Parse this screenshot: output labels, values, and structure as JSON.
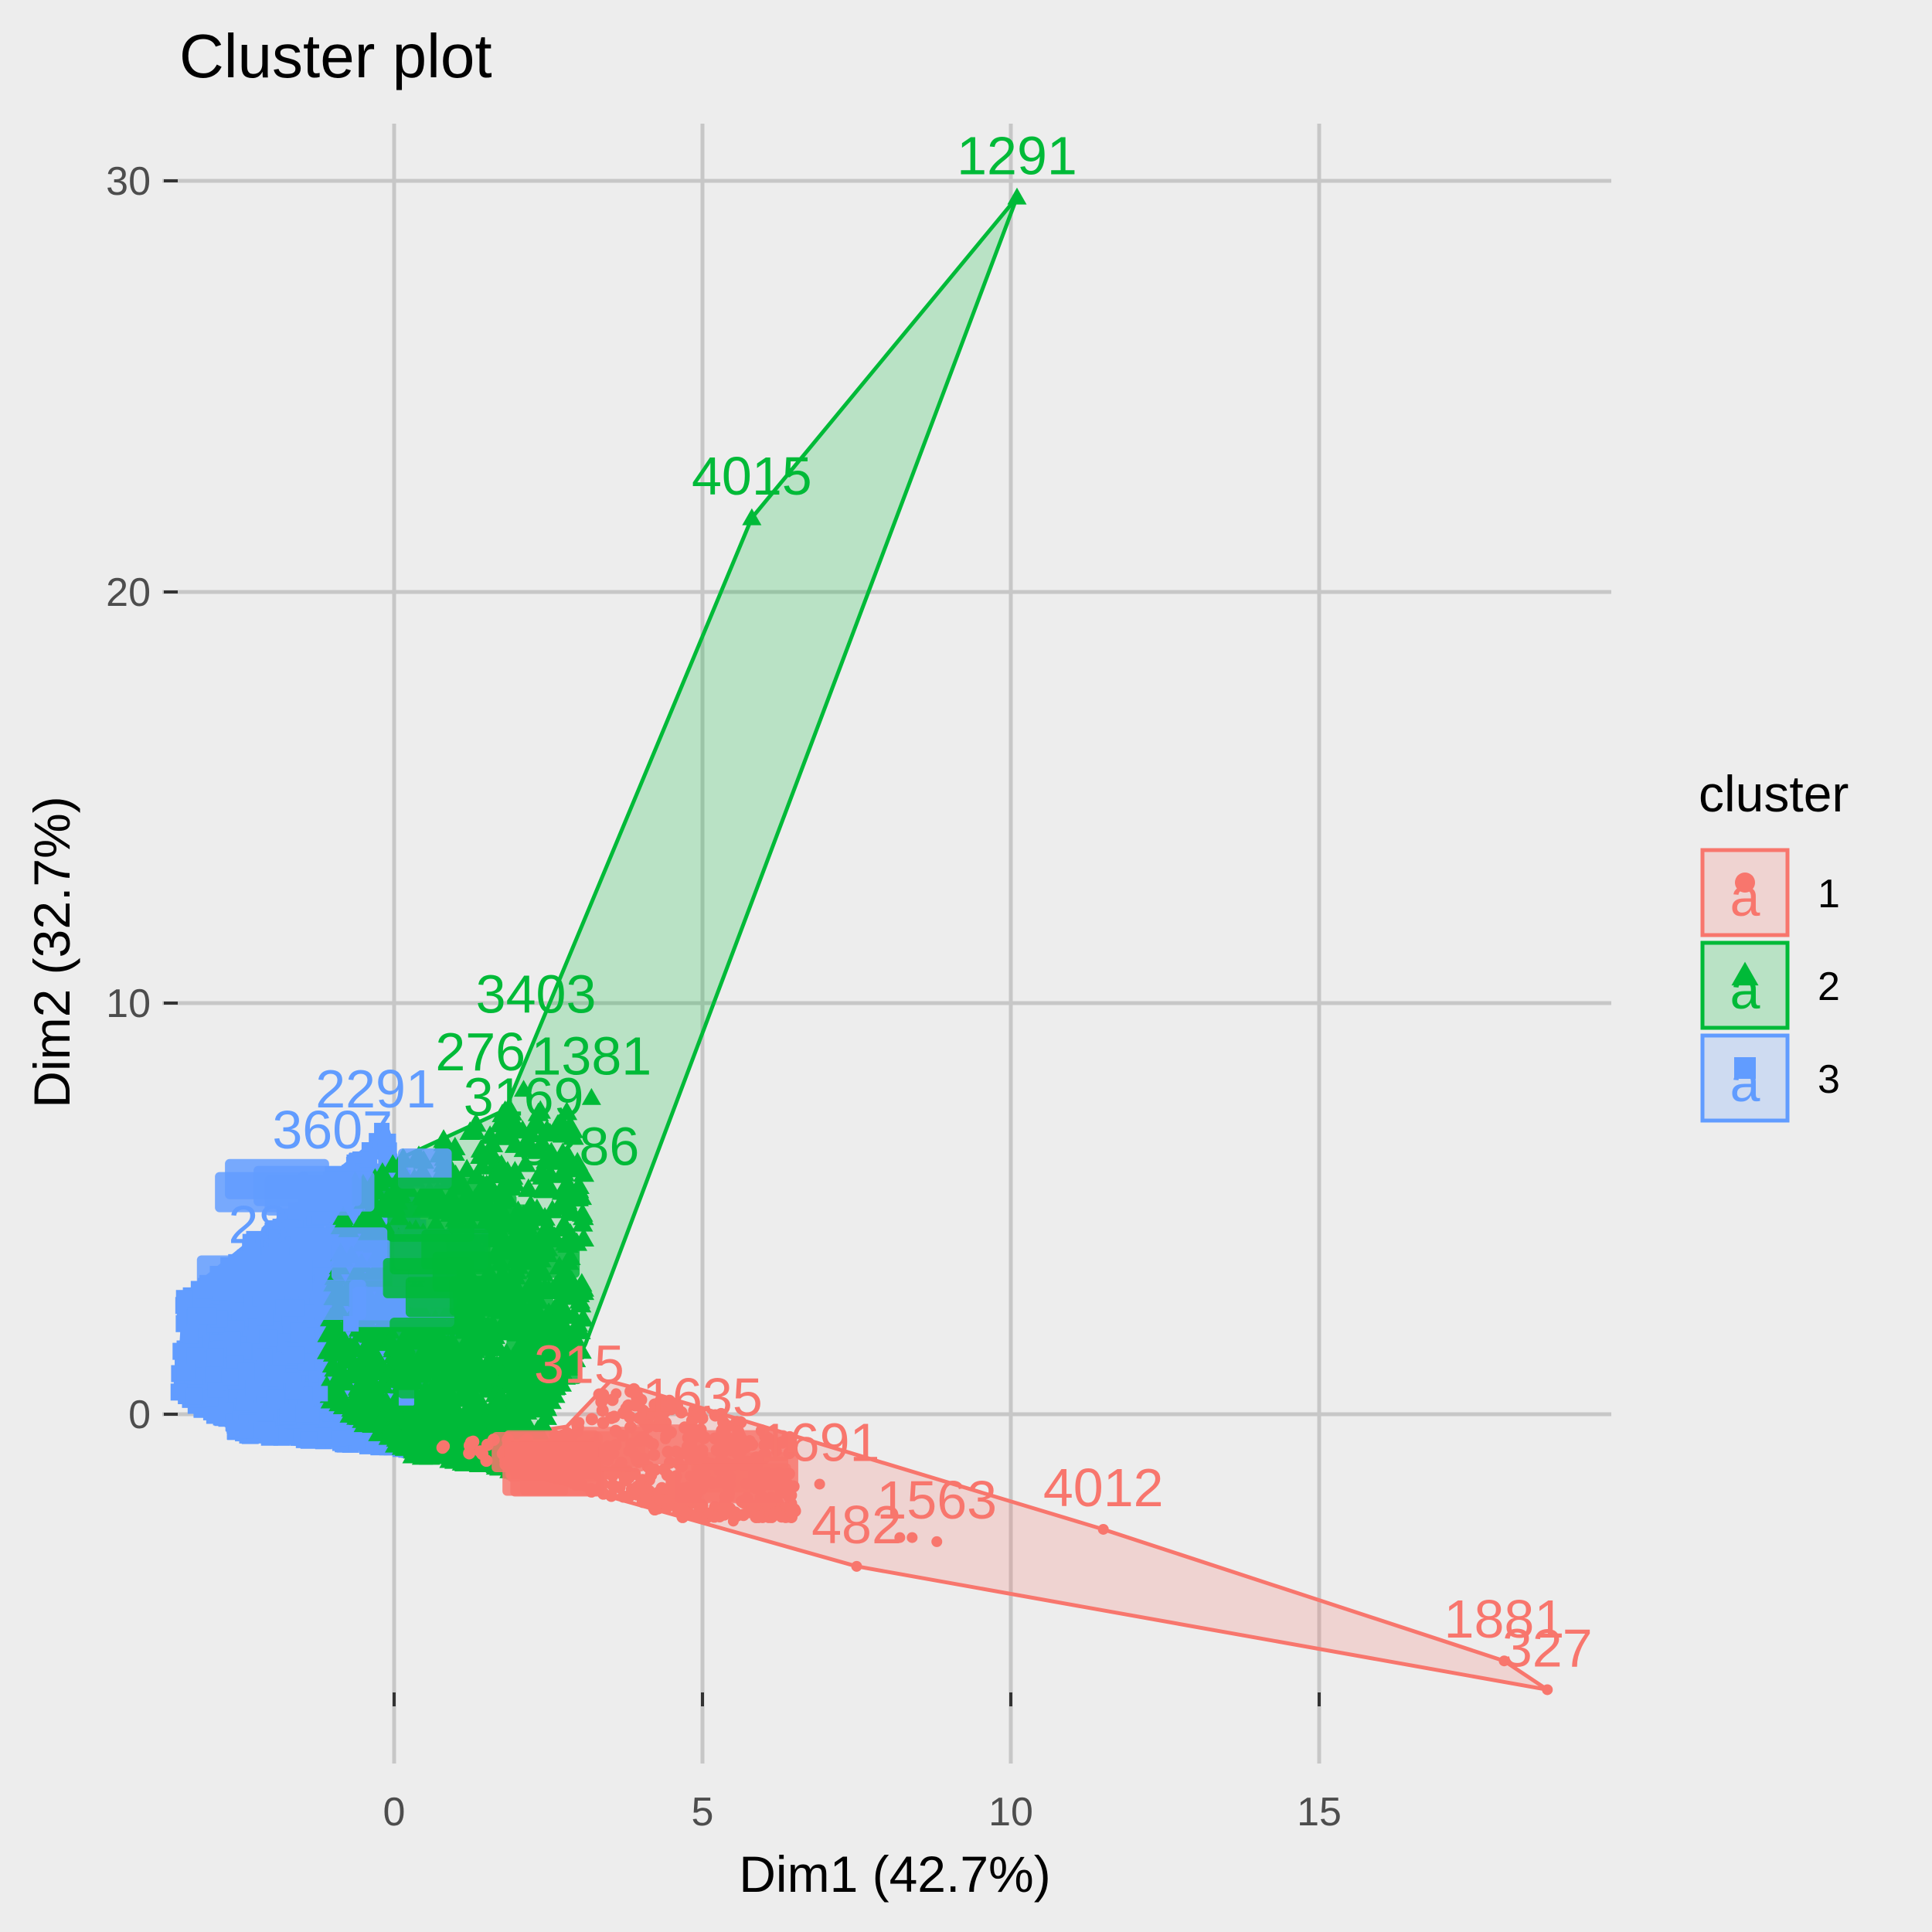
{
  "chart_data": {
    "type": "scatter",
    "title": "Cluster plot",
    "xlabel": "Dim1 (42.7%)",
    "ylabel": "Dim2 (32.7%)",
    "xlim": [
      -4.9,
      19.7
    ],
    "ylim": [
      -8.3,
      31.4
    ],
    "x_ticks": [
      0,
      5,
      10,
      15
    ],
    "y_ticks": [
      0,
      10,
      20,
      30
    ],
    "grid": true,
    "legend": {
      "title": "cluster",
      "placement": "right",
      "glyph": "a"
    },
    "series": [
      {
        "name": "1",
        "color": "#F8766D",
        "marker": "circle",
        "hull": [
          [
            18.0,
            -6.0
          ],
          [
            18.7,
            -6.7
          ],
          [
            7.5,
            -3.7
          ],
          [
            2.3,
            -1.5
          ],
          [
            0.6,
            -0.8
          ],
          [
            2.8,
            -0.3
          ],
          [
            3.5,
            0.8
          ],
          [
            4.0,
            0.6
          ],
          [
            11.5,
            -2.8
          ]
        ],
        "points": [
          [
            18.7,
            -6.7
          ],
          [
            18.0,
            -6.0
          ],
          [
            11.5,
            -2.8
          ],
          [
            7.5,
            -3.7
          ],
          [
            8.2,
            -3.0
          ],
          [
            8.4,
            -3.0
          ],
          [
            8.8,
            -3.1
          ],
          [
            6.9,
            -1.7
          ],
          [
            5.1,
            -2.4
          ],
          [
            5.5,
            -2.6
          ],
          [
            4.3,
            -2.1
          ],
          [
            3.9,
            -1.9
          ],
          [
            6.2,
            -0.9
          ],
          [
            4.6,
            0.2
          ],
          [
            3.6,
            0.5
          ],
          [
            5.0,
            -1.0
          ],
          [
            4.0,
            -1.6
          ],
          [
            3.2,
            -1.3
          ],
          [
            2.8,
            -0.8
          ],
          [
            2.4,
            -1.4
          ],
          [
            4.4,
            -0.6
          ],
          [
            5.6,
            -1.1
          ],
          [
            3.0,
            -0.2
          ],
          [
            3.8,
            -0.9
          ],
          [
            2.6,
            -0.5
          ],
          [
            4.8,
            -1.5
          ],
          [
            3.4,
            -1.7
          ]
        ],
        "labels": [
          {
            "text": "1881",
            "at": [
              18.0,
              -6.0
            ]
          },
          {
            "text": "327",
            "at": [
              18.7,
              -6.7
            ]
          },
          {
            "text": "4012",
            "at": [
              11.5,
              -2.8
            ]
          },
          {
            "text": "482",
            "at": [
              7.5,
              -3.7
            ]
          },
          {
            "text": "1563",
            "at": [
              8.8,
              -3.1
            ]
          },
          {
            "text": "1691",
            "at": [
              6.9,
              -1.7
            ]
          },
          {
            "text": "1635",
            "at": [
              5.0,
              -0.6
            ]
          },
          {
            "text": "315",
            "at": [
              3.0,
              0.2
            ]
          }
        ]
      },
      {
        "name": "2",
        "color": "#00BA38",
        "marker": "triangle",
        "hull": [
          [
            10.1,
            29.6
          ],
          [
            5.8,
            21.8
          ],
          [
            1.8,
            7.4
          ],
          [
            -0.8,
            5.6
          ],
          [
            -1.2,
            0.4
          ],
          [
            0.3,
            -1.0
          ],
          [
            2.0,
            -1.4
          ],
          [
            3.1,
            1.7
          ]
        ],
        "points": [
          [
            10.1,
            29.6
          ],
          [
            5.8,
            21.8
          ],
          [
            3.2,
            7.7
          ],
          [
            2.7,
            4.5
          ],
          [
            2.1,
            7.9
          ],
          [
            1.8,
            7.4
          ],
          [
            2.2,
            3.8
          ],
          [
            1.0,
            2.4
          ],
          [
            1.5,
            5.6
          ],
          [
            0.6,
            4.2
          ],
          [
            2.4,
            2.0
          ],
          [
            0.2,
            1.0
          ],
          [
            1.3,
            3.1
          ],
          [
            2.0,
            1.0
          ],
          [
            -0.5,
            2.6
          ],
          [
            0.8,
            -0.2
          ],
          [
            1.9,
            0.0
          ],
          [
            0.4,
            0.2
          ],
          [
            2.6,
            1.4
          ],
          [
            1.6,
            2.2
          ]
        ],
        "labels": [
          {
            "text": "1291",
            "at": [
              10.1,
              29.6
            ]
          },
          {
            "text": "4015",
            "at": [
              5.8,
              21.8
            ]
          },
          {
            "text": "3403",
            "at": [
              2.3,
              9.2
            ]
          },
          {
            "text": "1381",
            "at": [
              3.2,
              7.7
            ]
          },
          {
            "text": "276",
            "at": [
              1.4,
              7.8
            ]
          },
          {
            "text": "3169",
            "at": [
              2.1,
              6.7
            ]
          },
          {
            "text": "3286",
            "at": [
              3.0,
              5.5
            ]
          }
        ]
      },
      {
        "name": "3",
        "color": "#619CFF",
        "marker": "square",
        "hull": [
          [
            -0.1,
            6.9
          ],
          [
            -3.4,
            2.9
          ],
          [
            -3.5,
            0.5
          ],
          [
            -2.5,
            -0.5
          ],
          [
            0.5,
            -0.9
          ],
          [
            1.0,
            1.5
          ]
        ],
        "points": [
          [
            -0.2,
            6.9
          ],
          [
            -0.4,
            6.2
          ],
          [
            -1.6,
            4.5
          ],
          [
            -2.6,
            3.0
          ],
          [
            -3.3,
            1.9
          ],
          [
            -3.4,
            1.0
          ],
          [
            -2.4,
            -0.4
          ],
          [
            -1.2,
            0.5
          ],
          [
            -0.7,
            2.2
          ],
          [
            0.1,
            3.3
          ],
          [
            -1.8,
            2.6
          ],
          [
            -2.9,
            0.6
          ],
          [
            -0.9,
            -0.6
          ],
          [
            0.2,
            0.4
          ],
          [
            -2.1,
            1.4
          ]
        ],
        "labels": [
          {
            "text": "2291",
            "at": [
              -0.3,
              6.9
            ]
          },
          {
            "text": "3607",
            "at": [
              -1.0,
              5.9
            ]
          },
          {
            "text": "28",
            "at": [
              -2.2,
              3.6
            ]
          }
        ]
      }
    ]
  }
}
